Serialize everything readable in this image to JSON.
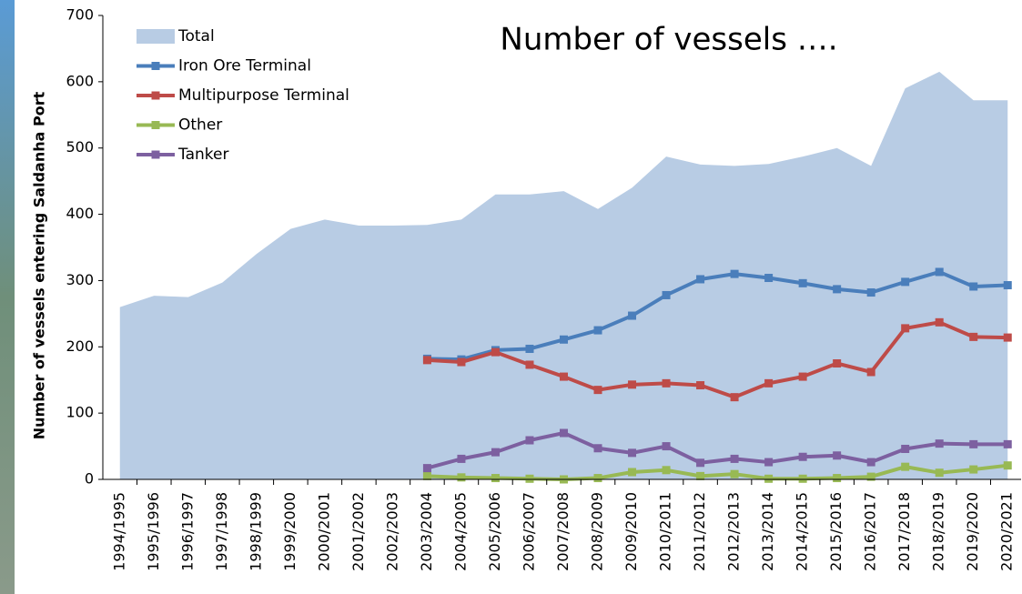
{
  "chart_data": {
    "type": "line",
    "title": "Number of vessels ….",
    "y_label": "Number of vessels entering Saldanha Port",
    "categories": [
      "1994/1995",
      "1995/1996",
      "1996/1997",
      "1997/1998",
      "1998/1999",
      "1999/2000",
      "2000/2001",
      "2001/2002",
      "2002/2003",
      "2003/2004",
      "2004/2005",
      "2005/2006",
      "2006/2007",
      "2007/2008",
      "2008/2009",
      "2009/2010",
      "2010/2011",
      "2011/2012",
      "2012/2013",
      "2013/2014",
      "2014/2015",
      "2015/2016",
      "2016/2017",
      "2017/2018",
      "2018/2019",
      "2019/2020",
      "2020/2021"
    ],
    "series": [
      {
        "name": "Total",
        "type": "area",
        "color": "#b8cce4",
        "values": [
          260,
          277,
          275,
          297,
          340,
          378,
          392,
          383,
          383,
          384,
          392,
          430,
          430,
          435,
          408,
          440,
          487,
          475,
          473,
          476,
          487,
          500,
          473,
          590,
          615,
          572,
          572
        ]
      },
      {
        "name": "Iron Ore Terminal",
        "color": "#4a7ebb",
        "values": [
          null,
          null,
          null,
          null,
          null,
          null,
          null,
          null,
          null,
          182,
          181,
          195,
          197,
          211,
          225,
          247,
          278,
          302,
          310,
          304,
          296,
          287,
          282,
          298,
          313,
          291,
          293
        ]
      },
      {
        "name": "Multipurpose Terminal",
        "color": "#be4b48",
        "values": [
          null,
          null,
          null,
          null,
          null,
          null,
          null,
          null,
          null,
          180,
          177,
          192,
          173,
          155,
          135,
          143,
          145,
          142,
          124,
          145,
          155,
          175,
          162,
          228,
          237,
          215,
          214
        ]
      },
      {
        "name": "Other",
        "color": "#98b954",
        "values": [
          null,
          null,
          null,
          null,
          null,
          null,
          null,
          null,
          null,
          5,
          3,
          2,
          1,
          0,
          2,
          11,
          14,
          5,
          8,
          1,
          1,
          2,
          4,
          19,
          10,
          15,
          21
        ]
      },
      {
        "name": "Tanker",
        "color": "#7d60a0",
        "values": [
          null,
          null,
          null,
          null,
          null,
          null,
          null,
          null,
          null,
          17,
          31,
          41,
          59,
          70,
          47,
          40,
          50,
          25,
          31,
          26,
          34,
          36,
          26,
          46,
          54,
          53,
          53
        ]
      }
    ],
    "ylim": [
      0,
      700
    ],
    "yticks": [
      0,
      100,
      200,
      300,
      400,
      500,
      600,
      700
    ],
    "legend": "upper left"
  }
}
